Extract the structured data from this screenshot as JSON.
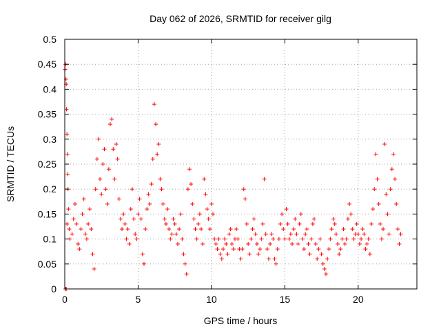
{
  "chart_data": {
    "type": "scatter",
    "title": "Day 062 of 2026, SRMTID for receiver gilg",
    "xlabel": "GPS time / hours",
    "ylabel": "SRMTID / TECUs",
    "xlim": [
      0,
      24
    ],
    "ylim": [
      0,
      0.5
    ],
    "x_ticks": [
      0,
      5,
      10,
      15,
      20
    ],
    "y_ticks": [
      0,
      0.05,
      0.1,
      0.15,
      0.2,
      0.25,
      0.3,
      0.35,
      0.4,
      0.45,
      0.5
    ],
    "x_tick_labels": [
      "0",
      "5",
      "10",
      "15",
      "20"
    ],
    "y_tick_labels": [
      "0",
      "0.05",
      "0.1",
      "0.15",
      "0.2",
      "0.25",
      "0.3",
      "0.35",
      "0.4",
      "0.45",
      "0.5"
    ],
    "grid": true,
    "marker": "+",
    "color": "#ff0000",
    "series": [
      {
        "name": "SRMTID",
        "points": [
          [
            0.02,
            0.44
          ],
          [
            0.05,
            0.45
          ],
          [
            0.08,
            0.42
          ],
          [
            0.1,
            0.41
          ],
          [
            0.12,
            0.36
          ],
          [
            0.15,
            0.31
          ],
          [
            0.18,
            0.27
          ],
          [
            0.2,
            0.23
          ],
          [
            0.22,
            0.2
          ],
          [
            0.25,
            0.16
          ],
          [
            0.05,
            0.0
          ],
          [
            0.1,
            0.0
          ],
          [
            0.15,
            0.13
          ],
          [
            0.3,
            0.12
          ],
          [
            0.35,
            0.1
          ],
          [
            0.5,
            0.11
          ],
          [
            0.6,
            0.14
          ],
          [
            0.7,
            0.17
          ],
          [
            0.8,
            0.13
          ],
          [
            0.9,
            0.09
          ],
          [
            1.0,
            0.08
          ],
          [
            1.1,
            0.12
          ],
          [
            1.2,
            0.15
          ],
          [
            1.3,
            0.18
          ],
          [
            1.4,
            0.11
          ],
          [
            1.5,
            0.1
          ],
          [
            1.6,
            0.13
          ],
          [
            1.7,
            0.16
          ],
          [
            1.8,
            0.12
          ],
          [
            1.9,
            0.07
          ],
          [
            2.0,
            0.04
          ],
          [
            2.1,
            0.2
          ],
          [
            2.2,
            0.26
          ],
          [
            2.3,
            0.3
          ],
          [
            2.4,
            0.22
          ],
          [
            2.5,
            0.19
          ],
          [
            2.6,
            0.25
          ],
          [
            2.7,
            0.28
          ],
          [
            2.8,
            0.2
          ],
          [
            2.9,
            0.17
          ],
          [
            3.0,
            0.24
          ],
          [
            3.1,
            0.33
          ],
          [
            3.2,
            0.34
          ],
          [
            3.3,
            0.28
          ],
          [
            3.4,
            0.22
          ],
          [
            3.5,
            0.29
          ],
          [
            3.6,
            0.26
          ],
          [
            3.7,
            0.18
          ],
          [
            3.8,
            0.14
          ],
          [
            3.9,
            0.12
          ],
          [
            4.0,
            0.15
          ],
          [
            4.1,
            0.13
          ],
          [
            4.2,
            0.1
          ],
          [
            4.3,
            0.12
          ],
          [
            4.4,
            0.09
          ],
          [
            4.5,
            0.16
          ],
          [
            4.6,
            0.2
          ],
          [
            4.7,
            0.14
          ],
          [
            4.8,
            0.11
          ],
          [
            4.9,
            0.1
          ],
          [
            5.0,
            0.15
          ],
          [
            5.1,
            0.18
          ],
          [
            5.2,
            0.14
          ],
          [
            5.3,
            0.07
          ],
          [
            5.4,
            0.05
          ],
          [
            5.5,
            0.12
          ],
          [
            5.6,
            0.16
          ],
          [
            5.7,
            0.19
          ],
          [
            5.8,
            0.17
          ],
          [
            5.9,
            0.21
          ],
          [
            6.0,
            0.26
          ],
          [
            6.1,
            0.37
          ],
          [
            6.2,
            0.33
          ],
          [
            6.3,
            0.27
          ],
          [
            6.4,
            0.29
          ],
          [
            6.5,
            0.22
          ],
          [
            6.6,
            0.2
          ],
          [
            6.7,
            0.17
          ],
          [
            6.8,
            0.14
          ],
          [
            6.9,
            0.13
          ],
          [
            7.0,
            0.16
          ],
          [
            7.1,
            0.12
          ],
          [
            7.2,
            0.1
          ],
          [
            7.3,
            0.11
          ],
          [
            7.4,
            0.14
          ],
          [
            7.5,
            0.13
          ],
          [
            7.6,
            0.11
          ],
          [
            7.7,
            0.09
          ],
          [
            7.8,
            0.12
          ],
          [
            7.9,
            0.15
          ],
          [
            8.0,
            0.1
          ],
          [
            8.1,
            0.07
          ],
          [
            8.2,
            0.05
          ],
          [
            8.3,
            0.03
          ],
          [
            8.4,
            0.2
          ],
          [
            8.5,
            0.24
          ],
          [
            8.6,
            0.21
          ],
          [
            8.7,
            0.17
          ],
          [
            8.8,
            0.14
          ],
          [
            8.9,
            0.12
          ],
          [
            9.0,
            0.1
          ],
          [
            9.1,
            0.13
          ],
          [
            9.2,
            0.15
          ],
          [
            9.3,
            0.12
          ],
          [
            9.4,
            0.09
          ],
          [
            9.5,
            0.22
          ],
          [
            9.6,
            0.19
          ],
          [
            9.7,
            0.16
          ],
          [
            9.8,
            0.14
          ],
          [
            9.9,
            0.12
          ],
          [
            10.0,
            0.17
          ],
          [
            10.1,
            0.15
          ],
          [
            10.2,
            0.1
          ],
          [
            10.3,
            0.09
          ],
          [
            10.4,
            0.08
          ],
          [
            10.5,
            0.1
          ],
          [
            10.6,
            0.07
          ],
          [
            10.7,
            0.06
          ],
          [
            10.8,
            0.08
          ],
          [
            10.9,
            0.1
          ],
          [
            11.0,
            0.09
          ],
          [
            11.1,
            0.07
          ],
          [
            11.2,
            0.11
          ],
          [
            11.3,
            0.12
          ],
          [
            11.4,
            0.09
          ],
          [
            11.5,
            0.08
          ],
          [
            11.6,
            0.1
          ],
          [
            11.7,
            0.12
          ],
          [
            11.8,
            0.1
          ],
          [
            11.9,
            0.08
          ],
          [
            12.0,
            0.06
          ],
          [
            12.1,
            0.08
          ],
          [
            12.2,
            0.2
          ],
          [
            12.3,
            0.18
          ],
          [
            12.4,
            0.13
          ],
          [
            12.5,
            0.09
          ],
          [
            12.6,
            0.07
          ],
          [
            12.7,
            0.1
          ],
          [
            12.8,
            0.12
          ],
          [
            12.9,
            0.14
          ],
          [
            13.0,
            0.11
          ],
          [
            13.1,
            0.09
          ],
          [
            13.2,
            0.07
          ],
          [
            13.3,
            0.08
          ],
          [
            13.4,
            0.1
          ],
          [
            13.5,
            0.13
          ],
          [
            13.6,
            0.22
          ],
          [
            13.7,
            0.11
          ],
          [
            13.8,
            0.08
          ],
          [
            13.9,
            0.06
          ],
          [
            14.0,
            0.09
          ],
          [
            14.1,
            0.11
          ],
          [
            14.2,
            0.1
          ],
          [
            14.3,
            0.06
          ],
          [
            14.4,
            0.05
          ],
          [
            14.5,
            0.08
          ],
          [
            14.6,
            0.1
          ],
          [
            14.7,
            0.13
          ],
          [
            14.8,
            0.15
          ],
          [
            14.9,
            0.12
          ],
          [
            15.0,
            0.1
          ],
          [
            15.1,
            0.16
          ],
          [
            15.2,
            0.13
          ],
          [
            15.3,
            0.1
          ],
          [
            15.4,
            0.11
          ],
          [
            15.5,
            0.09
          ],
          [
            15.6,
            0.12
          ],
          [
            15.7,
            0.14
          ],
          [
            15.8,
            0.11
          ],
          [
            15.9,
            0.09
          ],
          [
            16.0,
            0.13
          ],
          [
            16.1,
            0.15
          ],
          [
            16.2,
            0.1
          ],
          [
            16.3,
            0.08
          ],
          [
            16.4,
            0.11
          ],
          [
            16.5,
            0.12
          ],
          [
            16.6,
            0.09
          ],
          [
            16.7,
            0.07
          ],
          [
            16.8,
            0.1
          ],
          [
            16.9,
            0.13
          ],
          [
            17.0,
            0.14
          ],
          [
            17.1,
            0.09
          ],
          [
            17.2,
            0.06
          ],
          [
            17.3,
            0.08
          ],
          [
            17.4,
            0.1
          ],
          [
            17.5,
            0.07
          ],
          [
            17.6,
            0.05
          ],
          [
            17.7,
            0.04
          ],
          [
            17.8,
            0.03
          ],
          [
            17.9,
            0.06
          ],
          [
            18.0,
            0.08
          ],
          [
            18.1,
            0.1
          ],
          [
            18.2,
            0.12
          ],
          [
            18.3,
            0.14
          ],
          [
            18.4,
            0.13
          ],
          [
            18.5,
            0.11
          ],
          [
            18.6,
            0.09
          ],
          [
            18.7,
            0.07
          ],
          [
            18.8,
            0.08
          ],
          [
            18.9,
            0.1
          ],
          [
            19.0,
            0.12
          ],
          [
            19.1,
            0.09
          ],
          [
            19.2,
            0.1
          ],
          [
            19.3,
            0.14
          ],
          [
            19.4,
            0.17
          ],
          [
            19.5,
            0.15
          ],
          [
            19.6,
            0.12
          ],
          [
            19.7,
            0.1
          ],
          [
            19.8,
            0.11
          ],
          [
            19.9,
            0.13
          ],
          [
            20.0,
            0.11
          ],
          [
            20.1,
            0.09
          ],
          [
            20.2,
            0.1
          ],
          [
            20.3,
            0.12
          ],
          [
            20.4,
            0.11
          ],
          [
            20.5,
            0.08
          ],
          [
            20.6,
            0.09
          ],
          [
            20.7,
            0.1
          ],
          [
            20.8,
            0.07
          ],
          [
            20.9,
            0.13
          ],
          [
            21.0,
            0.16
          ],
          [
            21.1,
            0.2
          ],
          [
            21.2,
            0.27
          ],
          [
            21.3,
            0.22
          ],
          [
            21.4,
            0.17
          ],
          [
            21.5,
            0.13
          ],
          [
            21.6,
            0.1
          ],
          [
            21.7,
            0.12
          ],
          [
            21.8,
            0.29
          ],
          [
            21.9,
            0.19
          ],
          [
            22.0,
            0.15
          ],
          [
            22.1,
            0.11
          ],
          [
            22.2,
            0.2
          ],
          [
            22.3,
            0.24
          ],
          [
            22.4,
            0.27
          ],
          [
            22.5,
            0.22
          ],
          [
            22.6,
            0.17
          ],
          [
            22.7,
            0.12
          ],
          [
            22.8,
            0.09
          ],
          [
            22.9,
            0.11
          ]
        ]
      }
    ]
  }
}
